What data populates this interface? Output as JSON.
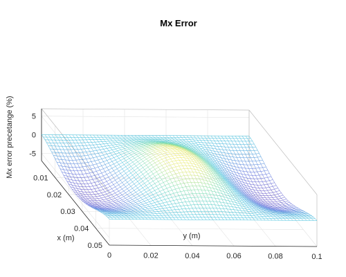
{
  "chart_data": {
    "type": "surface",
    "title": "Mx Error",
    "xlabel": "x (m)",
    "ylabel": "y (m)",
    "zlabel": "Mx error precetange (%)",
    "xlim": [
      0,
      0.05
    ],
    "ylim": [
      0,
      0.1
    ],
    "zlim": [
      -7,
      7
    ],
    "x_ticks": [
      "0.01",
      "0.02",
      "0.03",
      "0.04",
      "0.05"
    ],
    "y_ticks": [
      "0",
      "0.02",
      "0.04",
      "0.06",
      "0.08",
      "0.1"
    ],
    "z_ticks": [
      "5",
      "0",
      "-5"
    ],
    "grid": true,
    "colormap": "parula-like (purple to yellow)",
    "grid_size": [
      40,
      60
    ],
    "description_of_surface": {
      "edge_value_x0_x005": 0,
      "center_peak_at": {
        "x": 0.025,
        "y": 0.05,
        "z": 6
      },
      "trough_near": [
        {
          "x": 0.025,
          "y": 0.01,
          "z": -6
        },
        {
          "x": 0.025,
          "y": 0.09,
          "z": -6
        }
      ]
    }
  }
}
